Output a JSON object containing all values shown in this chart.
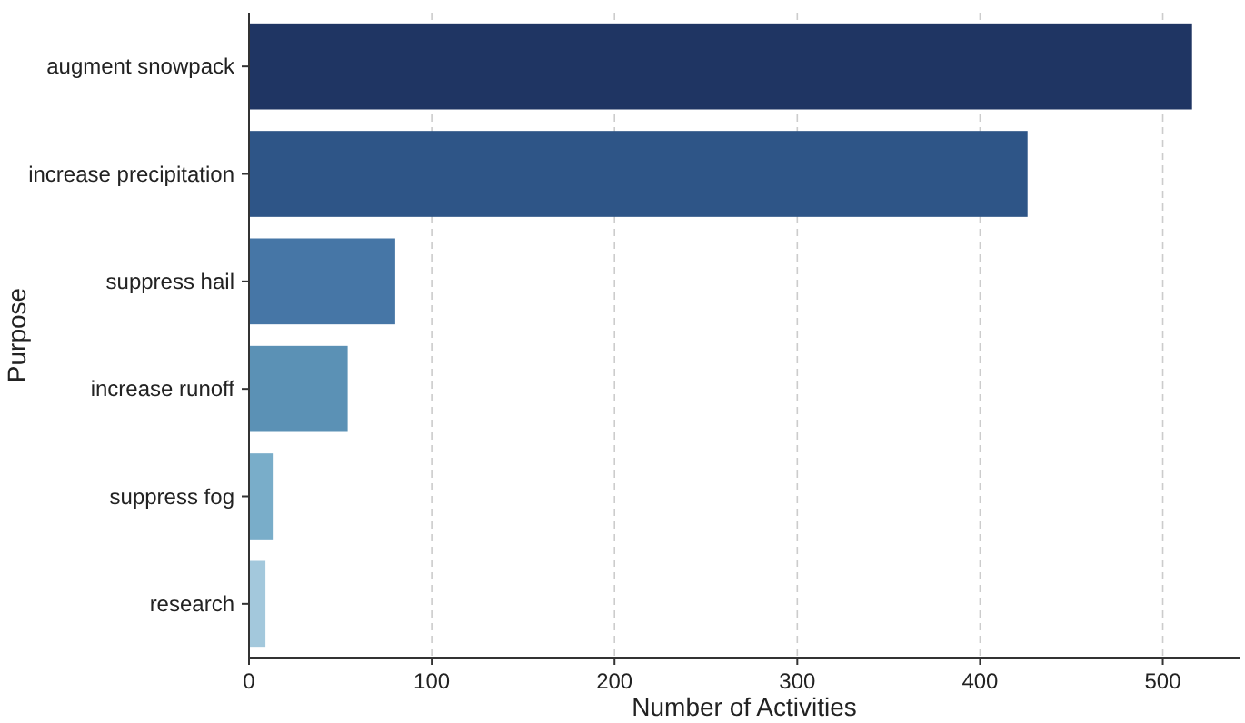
{
  "chart_data": {
    "type": "bar",
    "orientation": "horizontal",
    "xlabel": "Number of Activities",
    "ylabel": "Purpose",
    "categories": [
      "augment snowpack",
      "increase precipitation",
      "suppress hail",
      "increase runoff",
      "suppress fog",
      "research"
    ],
    "values": [
      516,
      426,
      80,
      54,
      13,
      9
    ],
    "colors": [
      "#1f3563",
      "#2e5587",
      "#4676a6",
      "#5b91b5",
      "#79adc9",
      "#a3c8dc"
    ],
    "xlim": [
      0,
      542
    ],
    "xticks": [
      0,
      100,
      200,
      300,
      400,
      500
    ],
    "grid": "x"
  }
}
